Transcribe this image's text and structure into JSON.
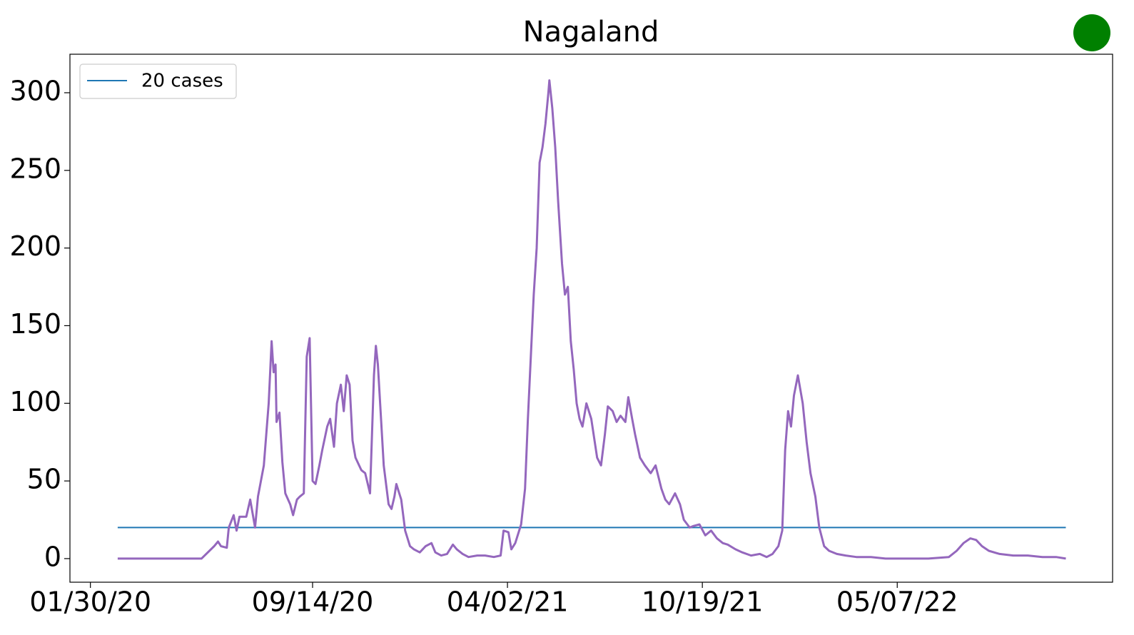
{
  "chart_data": {
    "type": "line",
    "title": "Nagaland",
    "x": [
      "2020-02-27",
      "2020-05-23",
      "2020-06-05",
      "2020-06-09",
      "2020-06-12",
      "2020-06-18",
      "2020-06-20",
      "2020-06-25",
      "2020-06-28",
      "2020-07-01",
      "2020-07-08",
      "2020-07-12",
      "2020-07-17",
      "2020-07-20",
      "2020-07-26",
      "2020-07-31",
      "2020-08-03",
      "2020-08-05",
      "2020-08-07",
      "2020-08-08",
      "2020-08-11",
      "2020-08-14",
      "2020-08-17",
      "2020-08-22",
      "2020-08-25",
      "2020-08-29",
      "2020-09-01",
      "2020-09-05",
      "2020-09-08",
      "2020-09-11",
      "2020-09-14",
      "2020-09-17",
      "2020-09-21",
      "2020-09-24",
      "2020-09-29",
      "2020-10-02",
      "2020-10-06",
      "2020-10-09",
      "2020-10-13",
      "2020-10-16",
      "2020-10-19",
      "2020-10-22",
      "2020-10-25",
      "2020-10-28",
      "2020-11-03",
      "2020-11-07",
      "2020-11-12",
      "2020-11-16",
      "2020-11-18",
      "2020-11-20",
      "2020-11-26",
      "2020-12-01",
      "2020-12-04",
      "2020-12-07",
      "2020-12-09",
      "2020-12-14",
      "2020-12-18",
      "2020-12-23",
      "2020-12-27",
      "2021-01-02",
      "2021-01-08",
      "2021-01-14",
      "2021-01-18",
      "2021-01-24",
      "2021-01-30",
      "2021-02-05",
      "2021-02-09",
      "2021-02-15",
      "2021-02-21",
      "2021-03-02",
      "2021-03-10",
      "2021-03-19",
      "2021-03-26",
      "2021-03-29",
      "2021-04-03",
      "2021-04-06",
      "2021-04-10",
      "2021-04-16",
      "2021-04-20",
      "2021-04-23",
      "2021-04-26",
      "2021-04-29",
      "2021-05-02",
      "2021-05-05",
      "2021-05-08",
      "2021-05-11",
      "2021-05-14",
      "2021-05-15",
      "2021-05-18",
      "2021-05-21",
      "2021-05-24",
      "2021-05-28",
      "2021-05-31",
      "2021-06-03",
      "2021-06-06",
      "2021-06-09",
      "2021-06-12",
      "2021-06-15",
      "2021-06-18",
      "2021-06-22",
      "2021-06-27",
      "2021-07-03",
      "2021-07-07",
      "2021-07-11",
      "2021-07-14",
      "2021-07-19",
      "2021-07-23",
      "2021-07-27",
      "2021-08-01",
      "2021-08-04",
      "2021-08-08",
      "2021-08-11",
      "2021-08-16",
      "2021-08-21",
      "2021-08-27",
      "2021-09-01",
      "2021-09-07",
      "2021-09-11",
      "2021-09-15",
      "2021-09-21",
      "2021-09-26",
      "2021-09-30",
      "2021-10-06",
      "2021-10-10",
      "2021-10-16",
      "2021-10-22",
      "2021-10-28",
      "2021-11-03",
      "2021-11-09",
      "2021-11-14",
      "2021-11-22",
      "2021-11-29",
      "2021-12-08",
      "2021-12-17",
      "2021-12-24",
      "2021-12-30",
      "2022-01-05",
      "2022-01-09",
      "2022-01-12",
      "2022-01-15",
      "2022-01-18",
      "2022-01-21",
      "2022-01-25",
      "2022-01-30",
      "2022-02-03",
      "2022-02-07",
      "2022-02-12",
      "2022-02-16",
      "2022-02-21",
      "2022-02-26",
      "2022-03-06",
      "2022-03-15",
      "2022-03-26",
      "2022-04-10",
      "2022-04-25",
      "2022-05-09",
      "2022-06-08",
      "2022-06-29",
      "2022-07-07",
      "2022-07-14",
      "2022-07-21",
      "2022-07-27",
      "2022-08-02",
      "2022-08-09",
      "2022-08-20",
      "2022-09-03",
      "2022-09-18",
      "2022-10-03",
      "2022-10-17",
      "2022-10-27"
    ],
    "series": [
      {
        "color": "#9467bd",
        "values": [
          0,
          0,
          8,
          11,
          8,
          7,
          20,
          28,
          18,
          27,
          27,
          38,
          20,
          40,
          60,
          100,
          140,
          120,
          125,
          88,
          94,
          62,
          42,
          35,
          28,
          38,
          40,
          42,
          130,
          142,
          50,
          48,
          60,
          70,
          85,
          90,
          72,
          100,
          112,
          95,
          118,
          112,
          76,
          65,
          57,
          55,
          42,
          118,
          137,
          125,
          60,
          35,
          32,
          40,
          48,
          38,
          18,
          8,
          6,
          4,
          8,
          10,
          4,
          2,
          3,
          9,
          6,
          3,
          1,
          2,
          2,
          1,
          2,
          18,
          17,
          6,
          10,
          22,
          45,
          90,
          130,
          170,
          200,
          255,
          265,
          280,
          300,
          308,
          290,
          265,
          230,
          190,
          170,
          175,
          140,
          122,
          100,
          90,
          85,
          100,
          90,
          65,
          60,
          80,
          98,
          95,
          88,
          92,
          88,
          104,
          90,
          80,
          65,
          60,
          55,
          60,
          45,
          38,
          35,
          42,
          35,
          25,
          20,
          21,
          22,
          15,
          18,
          13,
          10,
          9,
          6,
          4,
          2,
          3,
          1,
          3,
          8,
          18,
          70,
          95,
          85,
          105,
          118,
          100,
          75,
          55,
          40,
          20,
          8,
          5,
          3,
          2,
          1,
          1,
          0,
          0,
          0,
          1,
          5,
          10,
          13,
          12,
          8,
          5,
          3,
          2,
          2,
          1,
          1,
          0
        ]
      }
    ],
    "hline": {
      "name": "20 cases",
      "value": 20,
      "color": "#1f77b4"
    },
    "legend": "upper left",
    "xlim": [
      "2020-01-09",
      "2022-12-14"
    ],
    "xticks": [
      {
        "value": "2020-01-30",
        "label": "01/30/20"
      },
      {
        "value": "2020-09-14",
        "label": "09/14/20"
      },
      {
        "value": "2021-04-02",
        "label": "04/02/21"
      },
      {
        "value": "2021-10-19",
        "label": "10/19/21"
      },
      {
        "value": "2022-05-07",
        "label": "05/07/22"
      }
    ],
    "ylim": [
      -15.2,
      324.8
    ],
    "yticks": [
      0,
      50,
      100,
      150,
      200,
      250,
      300
    ]
  }
}
